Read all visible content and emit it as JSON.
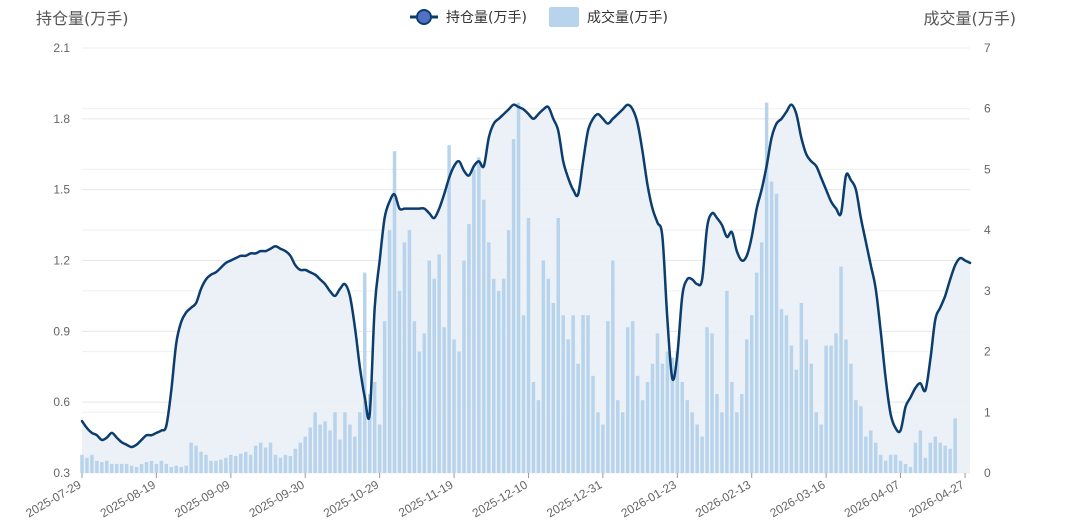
{
  "chart_data": {
    "type": "bar+line",
    "left_axis_title": "持仓量(万手)",
    "right_axis_title": "成交量(万手)",
    "left_ylim": [
      0.3,
      2.1
    ],
    "left_ticks": [
      "0.3",
      "0.6",
      "0.9",
      "1.2",
      "1.5",
      "1.8",
      "2.1"
    ],
    "right_ylim": [
      0,
      7
    ],
    "right_ticks": [
      "0",
      "1",
      "2",
      "3",
      "4",
      "5",
      "6",
      "7"
    ],
    "x_tick_labels": [
      "2025-07-29",
      "2025-08-19",
      "2025-09-09",
      "2025-09-30",
      "2025-10-29",
      "2025-11-19",
      "2025-12-10",
      "2025-12-31",
      "2026-01-23",
      "2026-02-13",
      "2026-03-16",
      "2026-04-07",
      "2026-04-27"
    ],
    "x_tick_indices": [
      0,
      15,
      30,
      45,
      60,
      75,
      90,
      105,
      120,
      135,
      150,
      165,
      178
    ],
    "grid": true,
    "legend_position": "top-center",
    "colors": {
      "line": "#0b3d6e",
      "area": "#e9eff6",
      "bar": "#b8d3ec",
      "legend_marker": "#5470c6"
    },
    "series": [
      {
        "name": "持仓量(万手)",
        "kind": "line",
        "axis": "left",
        "values": [
          0.52,
          0.49,
          0.47,
          0.46,
          0.44,
          0.45,
          0.47,
          0.45,
          0.43,
          0.42,
          0.41,
          0.42,
          0.44,
          0.46,
          0.46,
          0.47,
          0.48,
          0.5,
          0.65,
          0.85,
          0.94,
          0.98,
          1.0,
          1.02,
          1.08,
          1.12,
          1.14,
          1.15,
          1.17,
          1.19,
          1.2,
          1.21,
          1.22,
          1.22,
          1.23,
          1.23,
          1.24,
          1.24,
          1.25,
          1.26,
          1.25,
          1.24,
          1.22,
          1.18,
          1.16,
          1.16,
          1.15,
          1.14,
          1.12,
          1.1,
          1.07,
          1.05,
          1.08,
          1.1,
          1.05,
          0.92,
          0.75,
          0.62,
          0.55,
          1.0,
          1.2,
          1.38,
          1.45,
          1.48,
          1.42,
          1.42,
          1.42,
          1.42,
          1.42,
          1.42,
          1.4,
          1.38,
          1.42,
          1.48,
          1.55,
          1.6,
          1.62,
          1.58,
          1.56,
          1.6,
          1.62,
          1.6,
          1.72,
          1.78,
          1.8,
          1.82,
          1.84,
          1.86,
          1.85,
          1.84,
          1.82,
          1.8,
          1.82,
          1.84,
          1.85,
          1.8,
          1.75,
          1.62,
          1.55,
          1.5,
          1.48,
          1.62,
          1.75,
          1.8,
          1.82,
          1.8,
          1.78,
          1.8,
          1.82,
          1.84,
          1.86,
          1.84,
          1.78,
          1.66,
          1.52,
          1.42,
          1.36,
          1.3,
          0.95,
          0.7,
          0.8,
          1.05,
          1.12,
          1.12,
          1.1,
          1.12,
          1.34,
          1.4,
          1.38,
          1.35,
          1.3,
          1.32,
          1.24,
          1.2,
          1.22,
          1.3,
          1.42,
          1.5,
          1.6,
          1.72,
          1.78,
          1.8,
          1.83,
          1.86,
          1.82,
          1.72,
          1.65,
          1.62,
          1.6,
          1.55,
          1.5,
          1.45,
          1.42,
          1.4,
          1.56,
          1.54,
          1.5,
          1.38,
          1.28,
          1.18,
          1.08,
          0.9,
          0.7,
          0.55,
          0.49,
          0.48,
          0.58,
          0.62,
          0.66,
          0.68,
          0.65,
          0.78,
          0.95,
          1.0,
          1.05,
          1.12,
          1.18,
          1.21,
          1.2,
          1.19
        ]
      },
      {
        "name": "成交量(万手)",
        "kind": "bar",
        "axis": "right",
        "values": [
          0.3,
          0.25,
          0.3,
          0.2,
          0.18,
          0.2,
          0.15,
          0.15,
          0.15,
          0.15,
          0.12,
          0.1,
          0.15,
          0.18,
          0.2,
          0.15,
          0.2,
          0.15,
          0.1,
          0.12,
          0.1,
          0.12,
          0.5,
          0.45,
          0.35,
          0.3,
          0.2,
          0.2,
          0.22,
          0.25,
          0.3,
          0.28,
          0.32,
          0.35,
          0.3,
          0.45,
          0.5,
          0.42,
          0.5,
          0.3,
          0.25,
          0.3,
          0.28,
          0.4,
          0.5,
          0.6,
          0.75,
          1.0,
          0.8,
          0.85,
          0.7,
          1.0,
          0.55,
          1.0,
          0.8,
          0.6,
          1.0,
          3.3,
          1.3,
          1.5,
          0.8,
          2.5,
          4.0,
          5.3,
          3.0,
          3.8,
          4.0,
          2.5,
          2.0,
          2.3,
          3.5,
          3.2,
          3.6,
          2.4,
          5.4,
          2.2,
          2.0,
          3.5,
          4.1,
          5.0,
          5.2,
          4.5,
          3.8,
          3.2,
          3.0,
          3.2,
          4.0,
          5.5,
          6.1,
          2.6,
          4.2,
          1.5,
          1.2,
          3.5,
          3.2,
          2.8,
          4.2,
          2.6,
          2.2,
          2.6,
          1.8,
          2.6,
          2.6,
          1.6,
          1.0,
          0.8,
          2.5,
          3.5,
          1.2,
          1.0,
          2.4,
          2.5,
          1.6,
          1.2,
          1.5,
          1.8,
          2.3,
          1.8,
          2.0,
          1.9,
          2.0,
          1.5,
          1.2,
          1.0,
          0.8,
          0.6,
          2.4,
          2.3,
          1.3,
          1.0,
          3.0,
          1.5,
          1.0,
          1.3,
          2.2,
          2.6,
          3.3,
          3.8,
          6.1,
          4.8,
          4.6,
          2.7,
          2.6,
          2.1,
          1.7,
          2.8,
          2.2,
          1.8,
          1.0,
          0.8,
          2.1,
          2.1,
          2.3,
          3.4,
          2.2,
          1.8,
          1.2,
          1.1,
          0.6,
          0.7,
          0.5,
          0.3,
          0.2,
          0.3,
          0.3,
          0.2,
          0.15,
          0.1,
          0.5,
          0.7,
          0.25,
          0.5,
          0.6,
          0.5,
          0.45,
          0.4,
          0.9
        ]
      }
    ]
  }
}
